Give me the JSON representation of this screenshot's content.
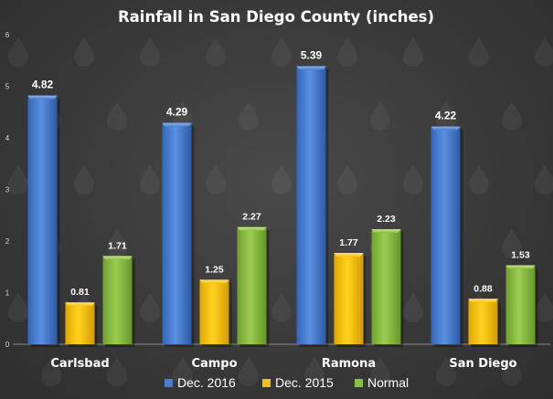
{
  "chart_data": {
    "type": "bar",
    "title": "Rainfall in San Diego County (inches)",
    "categories": [
      "Carlsbad",
      "Campo",
      "Ramona",
      "San Diego"
    ],
    "series": [
      {
        "name": "Dec. 2016",
        "values": [
          4.82,
          4.29,
          5.39,
          4.22
        ],
        "color": "#4a7fd0"
      },
      {
        "name": "Dec. 2015",
        "values": [
          0.81,
          1.25,
          1.77,
          0.88
        ],
        "color": "#f2c20e"
      },
      {
        "name": "Normal",
        "values": [
          1.71,
          2.27,
          2.23,
          1.53
        ],
        "color": "#8cc043"
      }
    ],
    "data_labels": [
      [
        "4.82",
        "4.29",
        "5.39",
        "4.22"
      ],
      [
        "0.81",
        "1.25",
        "1.77",
        "0.88"
      ],
      [
        "1.71",
        "2.27",
        "2.23",
        "1.53"
      ]
    ],
    "y_ticks": [
      "0",
      "1",
      "2",
      "3",
      "4",
      "5",
      "6"
    ],
    "ylim": [
      0,
      6
    ],
    "xlabel": "",
    "ylabel": "",
    "grid": false,
    "legend_position": "bottom",
    "background_motif": "raindrops"
  }
}
